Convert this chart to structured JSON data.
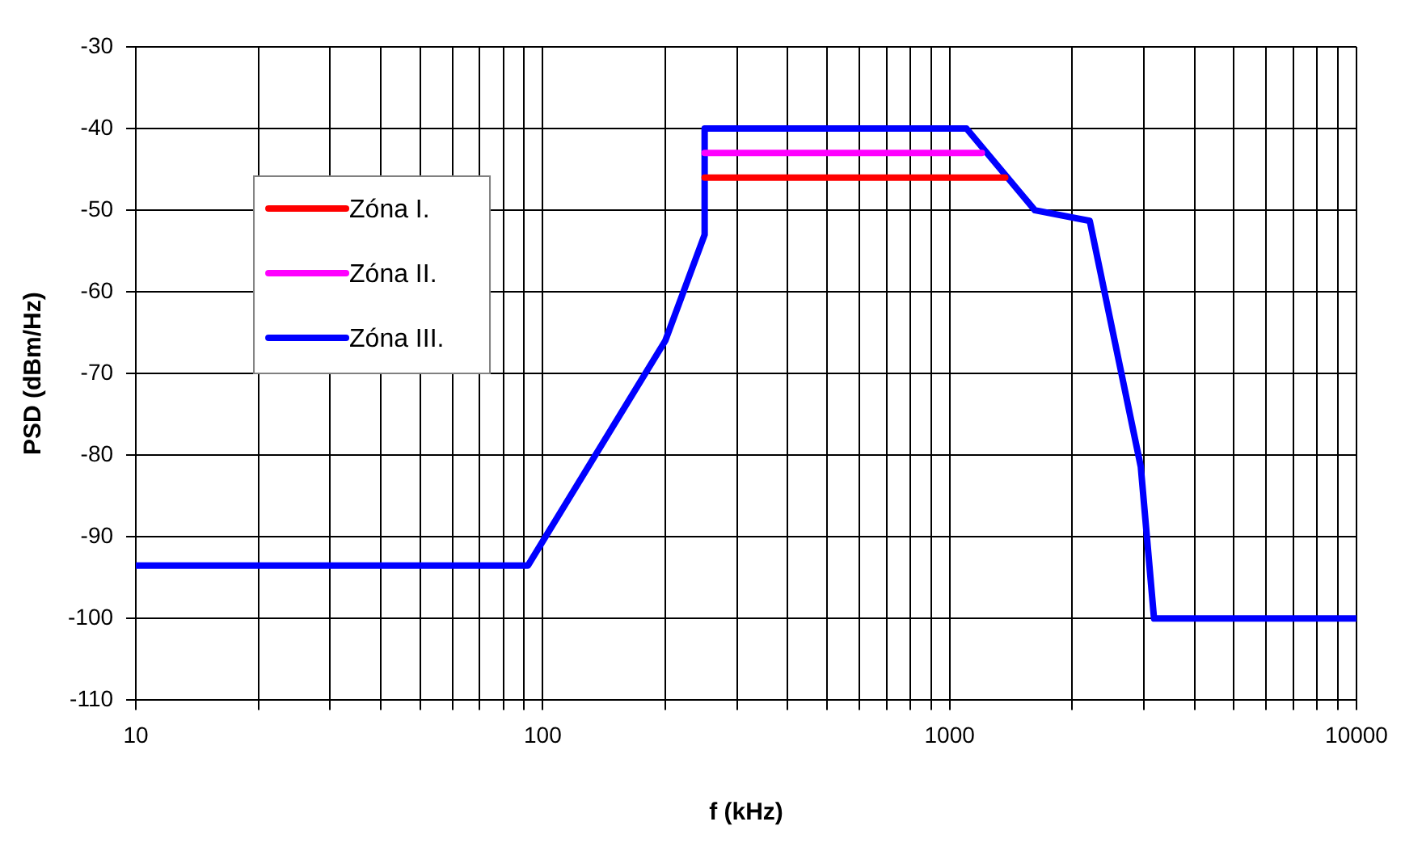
{
  "chart_data": {
    "type": "line",
    "xlabel": "f (kHz)",
    "ylabel": "PSD (dBm/Hz)",
    "log": "x",
    "grid": true,
    "legend": "top left",
    "line_style": "solid",
    "marker": "none",
    "xlim": [
      10,
      10000
    ],
    "xticks": [
      10,
      {
        "value": 20,
        "label": null
      },
      {
        "value": 30,
        "label": null
      },
      {
        "value": 40,
        "label": null
      },
      {
        "value": 50,
        "label": null
      },
      {
        "value": 60,
        "label": null
      },
      {
        "value": 70,
        "label": null
      },
      {
        "value": 80,
        "label": null
      },
      {
        "value": 90,
        "label": null
      },
      100,
      {
        "value": 200,
        "label": null
      },
      {
        "value": 300,
        "label": null
      },
      {
        "value": 400,
        "label": null
      },
      {
        "value": 500,
        "label": null
      },
      {
        "value": 600,
        "label": null
      },
      {
        "value": 700,
        "label": null
      },
      {
        "value": 800,
        "label": null
      },
      {
        "value": 900,
        "label": null
      },
      1000,
      {
        "value": 2000,
        "label": null
      },
      {
        "value": 3000,
        "label": null
      },
      {
        "value": 4000,
        "label": null
      },
      {
        "value": 5000,
        "label": null
      },
      {
        "value": 6000,
        "label": null
      },
      {
        "value": 7000,
        "label": null
      },
      {
        "value": 8000,
        "label": null
      },
      {
        "value": 9000,
        "label": null
      },
      10000
    ],
    "ylim": [
      -110,
      -30
    ],
    "yticks": [
      -110,
      -100,
      -90,
      -80,
      -70,
      -60,
      -50,
      -40,
      -30
    ],
    "series": [
      {
        "name": "Zóna I.",
        "color": "#ff0000",
        "x": [
          250,
          1370
        ],
        "values": [
          -46,
          -46
        ]
      },
      {
        "name": "Zóna II.",
        "color": "#ff00ff",
        "x": [
          250,
          1200
        ],
        "values": [
          -43,
          -43
        ]
      },
      {
        "name": "Zóna III.",
        "color": "#0000ff",
        "x": [
          10,
          92,
          200,
          250,
          250,
          1100,
          1620,
          2210,
          2950,
          3180,
          10000
        ],
        "values": [
          -93.5,
          -93.5,
          -66,
          -53,
          -40,
          -40,
          -50,
          -51.3,
          -81.4,
          -100,
          -100
        ]
      }
    ]
  }
}
